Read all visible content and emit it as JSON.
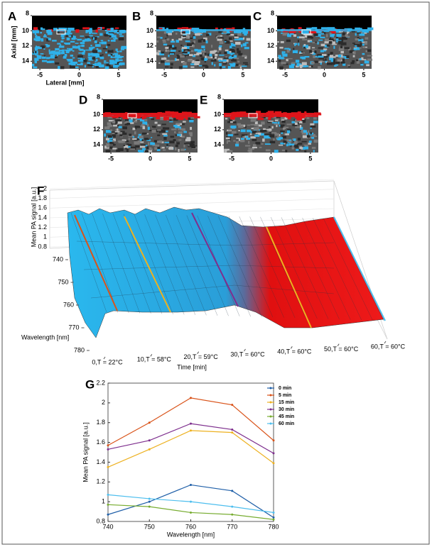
{
  "chart_data": [
    {
      "type": "image",
      "panel_label": "A",
      "ylabel": "Axial [mm]",
      "xlabel": "Lateral [mm]",
      "xlim": [
        -6,
        6
      ],
      "ylim": [
        8,
        15
      ],
      "y_reversed": true,
      "xticks": [
        -5,
        0,
        5
      ],
      "yticks": [
        8,
        10,
        12,
        14
      ]
    },
    {
      "type": "image",
      "panel_label": "B",
      "xlim": [
        -6,
        6
      ],
      "ylim": [
        8,
        15
      ],
      "y_reversed": true,
      "xticks": [
        -5,
        0,
        5
      ],
      "yticks": [
        8,
        10,
        12,
        14
      ]
    },
    {
      "type": "image",
      "panel_label": "C",
      "xlim": [
        -6,
        6
      ],
      "ylim": [
        8,
        15
      ],
      "y_reversed": true,
      "xticks": [
        -5,
        0,
        5
      ],
      "yticks": [
        8,
        10,
        12,
        14
      ]
    },
    {
      "type": "image",
      "panel_label": "D",
      "xlim": [
        -6,
        6
      ],
      "ylim": [
        8,
        15
      ],
      "y_reversed": true,
      "xticks": [
        -5,
        0,
        5
      ],
      "yticks": [
        8,
        10,
        12,
        14
      ]
    },
    {
      "type": "image",
      "panel_label": "E",
      "xlim": [
        -6,
        6
      ],
      "ylim": [
        8,
        15
      ],
      "y_reversed": true,
      "xticks": [
        -5,
        0,
        5
      ],
      "yticks": [
        8,
        10,
        12,
        14
      ]
    },
    {
      "type": "surface",
      "panel_label": "F",
      "zlabel": "Mean PA signal [a.u.]",
      "ylabel": "Wavelength [nm]",
      "xlabel": "Time [min]",
      "xlim": [
        0,
        60
      ],
      "ylim": [
        740,
        780
      ],
      "zlim": [
        0.8,
        2
      ],
      "xticks": [
        {
          "value": 0,
          "label": "0,T = 22°C"
        },
        {
          "value": 10,
          "label": "10,T = 58°C"
        },
        {
          "value": 20,
          "label": "20,T = 59°C"
        },
        {
          "value": 30,
          "label": "30,T = 60°C"
        },
        {
          "value": 40,
          "label": "40,T = 60°C"
        },
        {
          "value": 50,
          "label": "50,T = 60°C"
        },
        {
          "value": 60,
          "label": "60,T = 60°C"
        }
      ],
      "yticks": [
        740,
        750,
        760,
        770,
        780
      ],
      "zticks": [
        0.8,
        1,
        1.2,
        1.4,
        1.6,
        1.8,
        2
      ]
    },
    {
      "type": "line",
      "panel_label": "G",
      "xlabel": "Wavelength [nm]",
      "ylabel": "Mean PA signal [a.u.]",
      "x": [
        740,
        750,
        760,
        770,
        780
      ],
      "xlim": [
        740,
        780
      ],
      "ylim": [
        0.8,
        2.2
      ],
      "xticks": [
        740,
        750,
        760,
        770,
        780
      ],
      "yticks": [
        0.8,
        1,
        1.2,
        1.4,
        1.6,
        1.8,
        2,
        2.2
      ],
      "legend": "upper right outside",
      "series": [
        {
          "name": "0 min",
          "color": "#1f5fa8",
          "values": [
            0.87,
            1.0,
            1.17,
            1.11,
            0.84
          ]
        },
        {
          "name": "5 min",
          "color": "#d95319",
          "values": [
            1.57,
            1.8,
            2.05,
            1.98,
            1.62
          ]
        },
        {
          "name": "15 min",
          "color": "#edb120",
          "values": [
            1.35,
            1.53,
            1.72,
            1.7,
            1.39
          ]
        },
        {
          "name": "30 min",
          "color": "#7e2f8e",
          "values": [
            1.53,
            1.62,
            1.79,
            1.73,
            1.49
          ]
        },
        {
          "name": "45 min",
          "color": "#77ac30",
          "values": [
            0.97,
            0.95,
            0.89,
            0.87,
            0.82
          ]
        },
        {
          "name": "60 min",
          "color": "#4dbeee",
          "values": [
            1.07,
            1.03,
            1.0,
            0.95,
            0.89
          ]
        }
      ]
    }
  ]
}
